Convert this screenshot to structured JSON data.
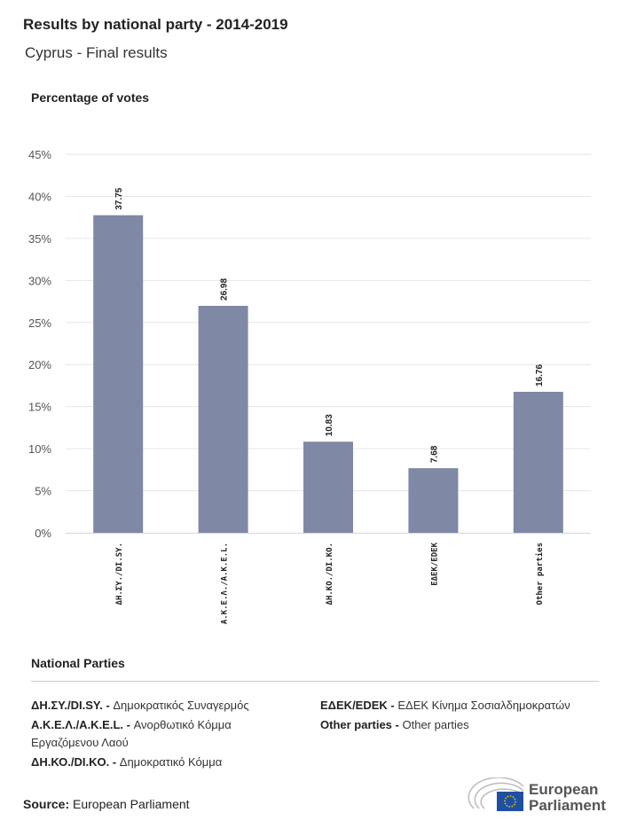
{
  "header": {
    "title": "Results by national party - 2014-2019",
    "subtitle": "Cyprus - Final results"
  },
  "chart_data": {
    "type": "bar",
    "ylabel": "Percentage of votes",
    "categories": [
      "ΔΗ.ΣΥ./DI.SY.",
      "A.K.E.Λ./A.K.E.L.",
      "ΔΗ.ΚΟ./DI.KO.",
      "ΕΔΕΚ/EDEK",
      "Other parties"
    ],
    "values": [
      37.75,
      26.98,
      10.83,
      7.68,
      16.76
    ],
    "value_labels": [
      "37.75",
      "26.98",
      "10.83",
      "7.68",
      "16.76"
    ],
    "ylim": [
      0,
      45
    ],
    "yticks": [
      0,
      5,
      10,
      15,
      20,
      25,
      30,
      35,
      40,
      45
    ],
    "ytick_labels": [
      "0%",
      "5%",
      "10%",
      "15%",
      "20%",
      "25%",
      "30%",
      "35%",
      "40%",
      "45%"
    ],
    "grid": true,
    "bar_color": "#7f88a4"
  },
  "legend": {
    "title": "National Parties",
    "items": [
      {
        "abbr": "ΔΗ.ΣΥ./DI.SY. -",
        "name": "Δημοκρατικός Συναγερμός"
      },
      {
        "abbr": "A.K.E.Λ./A.K.E.L. -",
        "name": "Ανορθωτικό Κόμμα Εργαζόμενου Λαού"
      },
      {
        "abbr": "ΔΗ.ΚΟ./DI.KO. -",
        "name": "Δημοκρατικό Κόμμα"
      },
      {
        "abbr": "ΕΔΕΚ/EDEK -",
        "name": "ΕΔΕΚ Κίνημα Σοσιαλδημοκρατών"
      },
      {
        "abbr": "Other parties -",
        "name": "Other parties"
      }
    ]
  },
  "footer": {
    "source_label": "Source:",
    "source": "European Parliament",
    "logo_line1": "European",
    "logo_line2": "Parliament"
  }
}
